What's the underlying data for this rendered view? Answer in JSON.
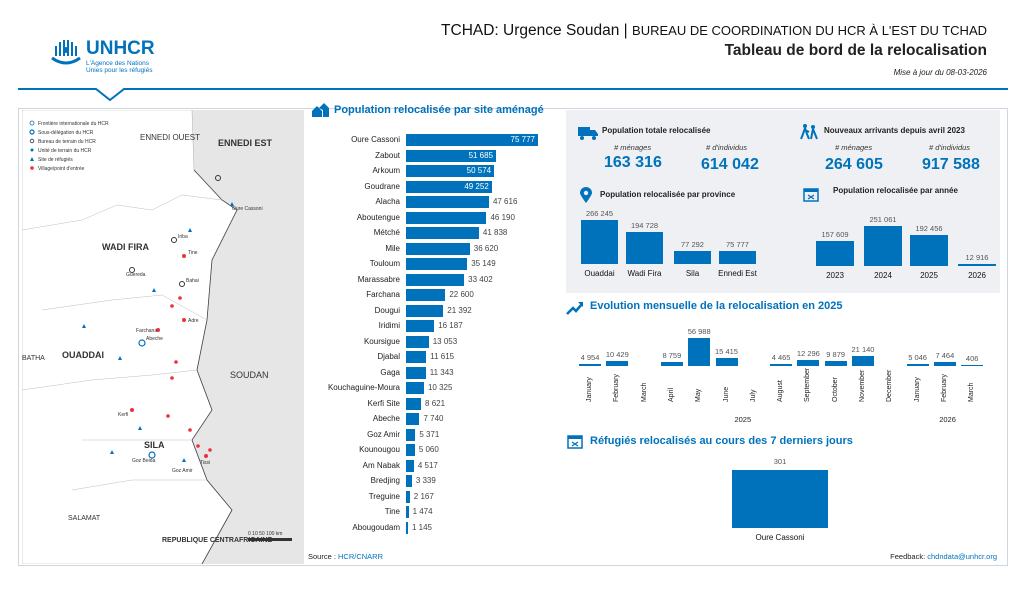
{
  "header": {
    "logo_text": "UNHCR",
    "logo_sub1": "L'Agence des Nations",
    "logo_sub2": "Unies pour les réfugiés",
    "title_prefix": "TCHAD: Urgence Soudan | ",
    "title_suffix": "BUREAU DE COORDINATION DU HCR À L'EST DU TCHAD",
    "subtitle": "Tableau de bord de la relocalisation",
    "update": "Mise à jour du 08-03-2026"
  },
  "map": {
    "legend": [
      "Frontière internationale du HCR",
      "Sous-délégation du HCR",
      "Bureau de terrain du HCR",
      "Unité de terrain du HCR",
      "Site de réfugiés",
      "Village/point d'entrée"
    ],
    "regions": [
      "ENNEDI OUEST",
      "ENNEDI EST",
      "WADI FIRA",
      "OUADDAI",
      "SILA",
      "SOUDAN",
      "BATHA",
      "SALAMAT",
      "REPUBLIQUE CENTRAFRICAINE"
    ],
    "places": [
      "Oure Cassoni",
      "Iriba",
      "Tine",
      "Guereda",
      "Bahai",
      "Abeche",
      "Goz Beida",
      "Kerfi",
      "Adre",
      "Farchana",
      "Tissi",
      "Goz Amir"
    ],
    "scale": "0  10  50  100 km",
    "colors": {
      "site": "#0072bc",
      "point": "#e8323c",
      "land": "#e6e6e6"
    }
  },
  "sections": {
    "site_title": "Population relocalisée par site aménagé",
    "total_title": "Population totale relocalisée",
    "new_title": "Nouveaux arrivants depuis avril 2023",
    "province_title": "Population relocalisée par province",
    "year_title": "Population relocalisée par année",
    "monthly_title": "Evolution mensuelle de la relocalisation en 2025",
    "week_title": "Réfugiés relocalisés au cours des 7 derniers jours"
  },
  "kpis": {
    "menages_label": "# ménages",
    "individus_label": "# d'individus",
    "total_menages": "163 316",
    "total_individus": "614 042",
    "new_menages": "264 605",
    "new_individus": "917 588"
  },
  "footer": {
    "source_label": "Source : ",
    "source": "HCR/CNARR",
    "feedback_label": "Feedback: ",
    "feedback": "chdndata@unhcr.org"
  },
  "chart_data": [
    {
      "type": "bar",
      "orientation": "horizontal",
      "title": "Population relocalisée par site aménagé",
      "categories": [
        "Oure Cassoni",
        "Zabout",
        "Arkoum",
        "Goudrane",
        "Alacha",
        "Aboutengue",
        "Métché",
        "Mile",
        "Touloum",
        "Marassabre",
        "Farchana",
        "Dougui",
        "Iridimi",
        "Koursigue",
        "Djabal",
        "Gaga",
        "Kouchaguine-Moura",
        "Kerfi Site",
        "Abeche",
        "Goz Amir",
        "Kounougou",
        "Am Nabak",
        "Bredjing",
        "Treguine",
        "Tine",
        "Abougoudam"
      ],
      "values": [
        75777,
        51685,
        50574,
        49252,
        47616,
        46190,
        41838,
        36620,
        35149,
        33402,
        22600,
        21392,
        16187,
        13053,
        11615,
        11343,
        10325,
        8621,
        7740,
        5371,
        5060,
        4517,
        3339,
        2167,
        1474,
        1145
      ],
      "labels": [
        "75 777",
        "51 685",
        "50 574",
        "49 252",
        "47 616",
        "46 190",
        "41 838",
        "36 620",
        "35 149",
        "33 402",
        "22 600",
        "21 392",
        "16 187",
        "13 053",
        "11 615",
        "11 343",
        "10 325",
        "8 621",
        "7 740",
        "5 371",
        "5 060",
        "4 517",
        "3 339",
        "2 167",
        "1 474",
        "1 145"
      ]
    },
    {
      "type": "bar",
      "title": "Population relocalisée par province",
      "categories": [
        "Ouaddai",
        "Wadi Fira",
        "Sila",
        "Ennedi Est"
      ],
      "values": [
        266245,
        194728,
        77292,
        75777
      ],
      "labels": [
        "266 245",
        "194 728",
        "77 292",
        "75 777"
      ]
    },
    {
      "type": "bar",
      "title": "Population relocalisée par année",
      "categories": [
        "2023",
        "2024",
        "2025",
        "2026"
      ],
      "values": [
        157609,
        251061,
        192456,
        12916
      ],
      "labels": [
        "157 609",
        "251 061",
        "192 456",
        "12 916"
      ]
    },
    {
      "type": "bar",
      "title": "Evolution mensuelle de la relocalisation en 2025",
      "categories": [
        "January",
        "February",
        "March",
        "April",
        "May",
        "June",
        "July",
        "August",
        "September",
        "October",
        "November",
        "December",
        "January",
        "February",
        "March"
      ],
      "groups": [
        {
          "name": "2025",
          "count": 12
        },
        {
          "name": "2026",
          "count": 3
        }
      ],
      "values": [
        4954,
        10429,
        null,
        8759,
        56988,
        15415,
        null,
        4465,
        12296,
        9879,
        21140,
        null,
        5046,
        7464,
        406
      ],
      "labels": [
        "4 954",
        "10 429",
        "",
        "8 759",
        "56 988",
        "15 415",
        "",
        "4 465",
        "12 296",
        "9 879",
        "21 140",
        "",
        "5 046",
        "7 464",
        "406"
      ]
    },
    {
      "type": "bar",
      "title": "Réfugiés relocalisés au cours des 7 derniers jours",
      "categories": [
        "Oure Cassoni"
      ],
      "values": [
        301
      ],
      "labels": [
        "301"
      ]
    }
  ]
}
